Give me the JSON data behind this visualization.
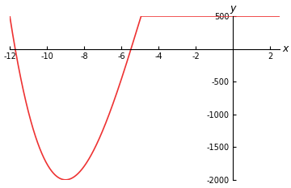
{
  "xmin": -12,
  "xmax": 2.5,
  "ymin": -2000,
  "ymax": 500,
  "curve_color": "#ee3333",
  "background_color": "#ffffff",
  "xticks": [
    -12,
    -10,
    -8,
    -6,
    -4,
    -2,
    2
  ],
  "yticks": [
    -2000,
    -1500,
    -1000,
    -500,
    500
  ],
  "xlabel": "x",
  "ylabel": "y",
  "figwidth": 3.6,
  "figheight": 2.33,
  "dpi": 100
}
